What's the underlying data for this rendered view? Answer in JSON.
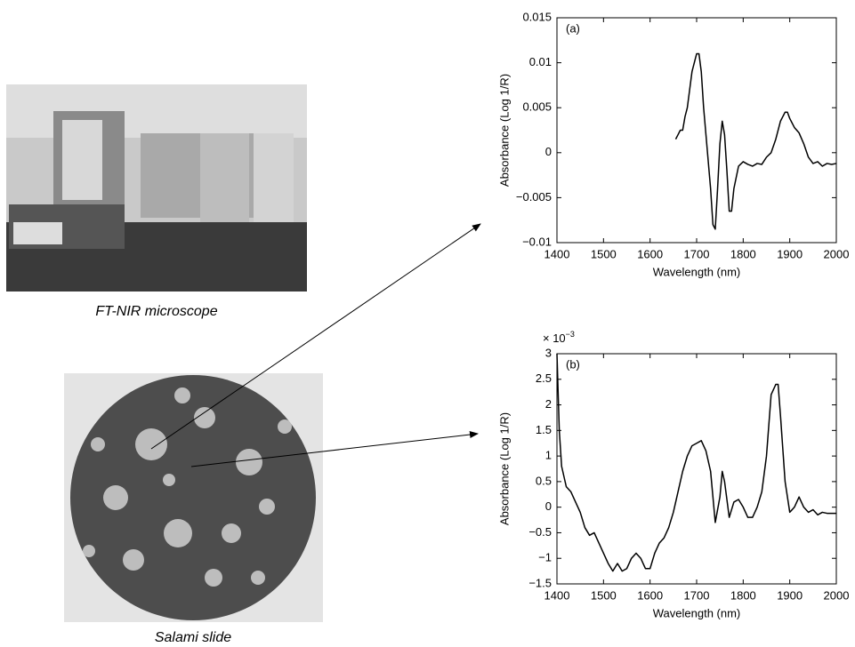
{
  "photos": [
    {
      "caption": "FT-NIR microscope"
    },
    {
      "caption": "Salami slide"
    }
  ],
  "chart_data": [
    {
      "type": "line",
      "annotation": "(a)",
      "x_label": "Wavelength (nm)",
      "y_label": "Absorbance (Log 1/R)",
      "xlim": [
        1400,
        2000
      ],
      "xticks": [
        1400,
        1500,
        1600,
        1700,
        1800,
        1900,
        2000
      ],
      "ylim": [
        -0.01,
        0.015
      ],
      "yticks": [
        {
          "value": -0.01,
          "label": "−0.01"
        },
        {
          "value": -0.005,
          "label": "−0.005"
        },
        0,
        0.005,
        0.01,
        0.015
      ],
      "series": [
        {
          "color": "#000000",
          "x": [
            1655,
            1660,
            1665,
            1670,
            1675,
            1680,
            1690,
            1700,
            1705,
            1710,
            1715,
            1720,
            1725,
            1730,
            1735,
            1740,
            1745,
            1750,
            1755,
            1760,
            1765,
            1770,
            1775,
            1780,
            1790,
            1800,
            1810,
            1820,
            1830,
            1840,
            1850,
            1860,
            1870,
            1880,
            1890,
            1895,
            1900,
            1910,
            1920,
            1930,
            1940,
            1950,
            1960,
            1970,
            1980,
            1990,
            2000
          ],
          "values": [
            0.0015,
            0.002,
            0.0025,
            0.0025,
            0.004,
            0.005,
            0.009,
            0.011,
            0.011,
            0.009,
            0.005,
            0.002,
            -0.001,
            -0.004,
            -0.008,
            -0.0085,
            -0.004,
            0.001,
            0.0035,
            0.002,
            -0.002,
            -0.0065,
            -0.0065,
            -0.004,
            -0.0015,
            -0.001,
            -0.0013,
            -0.0015,
            -0.0012,
            -0.0013,
            -0.0005,
            0,
            0.0015,
            0.0035,
            0.0045,
            0.0045,
            0.0038,
            0.0028,
            0.0022,
            0.001,
            -0.0005,
            -0.0012,
            -0.001,
            -0.0015,
            -0.0012,
            -0.0013,
            -0.0012
          ]
        }
      ]
    },
    {
      "type": "line",
      "annotation": "(b)",
      "scale_label": "× 10",
      "scale_exponent": "−3",
      "x_label": "Wavelength (nm)",
      "y_label": "Absorbance (Log 1/R)",
      "xlim": [
        1400,
        2000
      ],
      "xticks": [
        1400,
        1500,
        1600,
        1700,
        1800,
        1900,
        2000
      ],
      "ylim": [
        -1.5,
        3
      ],
      "yticks": [
        {
          "value": -1.5,
          "label": "−1.5"
        },
        {
          "value": -1,
          "label": "−1"
        },
        {
          "value": -0.5,
          "label": "−0.5"
        },
        0,
        0.5,
        1,
        1.5,
        2,
        2.5,
        3
      ],
      "series": [
        {
          "color": "#000000",
          "x": [
            1400,
            1405,
            1410,
            1420,
            1430,
            1440,
            1450,
            1460,
            1470,
            1480,
            1490,
            1500,
            1510,
            1520,
            1530,
            1540,
            1550,
            1560,
            1570,
            1580,
            1590,
            1600,
            1610,
            1620,
            1630,
            1640,
            1650,
            1660,
            1670,
            1680,
            1690,
            1700,
            1710,
            1720,
            1730,
            1740,
            1750,
            1755,
            1760,
            1770,
            1780,
            1790,
            1800,
            1810,
            1820,
            1830,
            1840,
            1850,
            1860,
            1870,
            1875,
            1880,
            1890,
            1900,
            1910,
            1920,
            1930,
            1940,
            1950,
            1960,
            1970,
            1980,
            1990,
            2000
          ],
          "values": [
            3,
            1.5,
            0.8,
            0.4,
            0.3,
            0.1,
            -0.1,
            -0.4,
            -0.55,
            -0.5,
            -0.7,
            -0.9,
            -1.1,
            -1.25,
            -1.1,
            -1.25,
            -1.2,
            -1.0,
            -0.9,
            -1.0,
            -1.2,
            -1.2,
            -0.9,
            -0.7,
            -0.6,
            -0.4,
            -0.1,
            0.3,
            0.7,
            1.0,
            1.2,
            1.25,
            1.3,
            1.1,
            0.7,
            -0.3,
            0.2,
            0.7,
            0.5,
            -0.2,
            0.1,
            0.15,
            0,
            -0.2,
            -0.2,
            0,
            0.3,
            1.0,
            2.2,
            2.4,
            2.4,
            1.8,
            0.5,
            -0.1,
            0,
            0.2,
            0,
            -0.1,
            -0.05,
            -0.15,
            -0.1,
            -0.12,
            -0.12,
            -0.12
          ]
        }
      ]
    }
  ]
}
